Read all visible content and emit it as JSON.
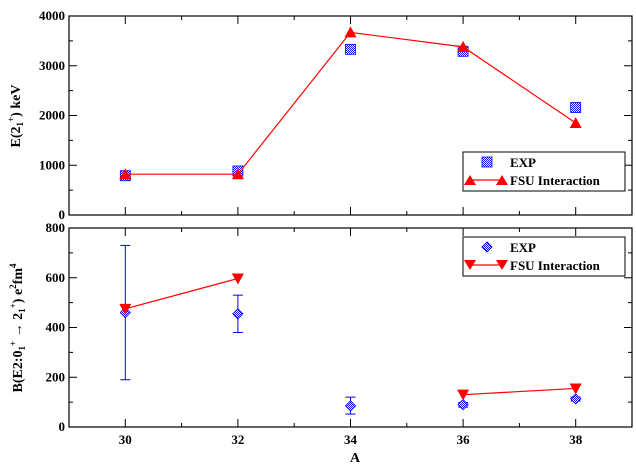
{
  "chart_data": [
    {
      "type": "scatter",
      "ylabel": "E(2₁⁺) keV",
      "xlim": [
        29,
        39
      ],
      "ylim": [
        0,
        4000
      ],
      "yticks": [
        0,
        1000,
        2000,
        3000,
        4000
      ],
      "legend_position": "bottom-right",
      "series": [
        {
          "name": "EXP",
          "marker": "square-checkered",
          "color": "#0000ff",
          "x": [
            30,
            32,
            34,
            36,
            38
          ],
          "y": [
            790,
            885,
            3330,
            3290,
            2160
          ]
        },
        {
          "name": "FSU Interaction",
          "marker": "triangle-up",
          "color": "#ff0000",
          "line": true,
          "x": [
            30,
            32,
            34,
            36,
            38
          ],
          "y": [
            820,
            820,
            3670,
            3380,
            1850
          ]
        }
      ]
    },
    {
      "type": "scatter",
      "ylabel": "B(E2:0₁⁺ → 2₁⁺) e²fm⁴",
      "xlabel": "A",
      "xlim": [
        29,
        39
      ],
      "ylim": [
        0,
        800
      ],
      "yticks": [
        0,
        200,
        400,
        600,
        800
      ],
      "xticks": [
        30,
        32,
        34,
        36,
        38
      ],
      "legend_position": "top-right",
      "series": [
        {
          "name": "EXP",
          "marker": "diamond",
          "color": "#0000ff",
          "x": [
            30,
            32,
            34,
            36,
            38
          ],
          "y": [
            460,
            455,
            85,
            90,
            113
          ],
          "err_low": [
            190,
            380,
            52,
            80,
            105
          ],
          "err_high": [
            730,
            530,
            120,
            98,
            120
          ]
        },
        {
          "name": "FSU Interaction",
          "marker": "triangle-down",
          "color": "#ff0000",
          "x": [
            30,
            32,
            36,
            38
          ],
          "y": [
            475,
            597,
            130,
            155
          ],
          "line_segments": [
            [
              0,
              1
            ],
            [
              2,
              3
            ]
          ]
        }
      ]
    }
  ]
}
